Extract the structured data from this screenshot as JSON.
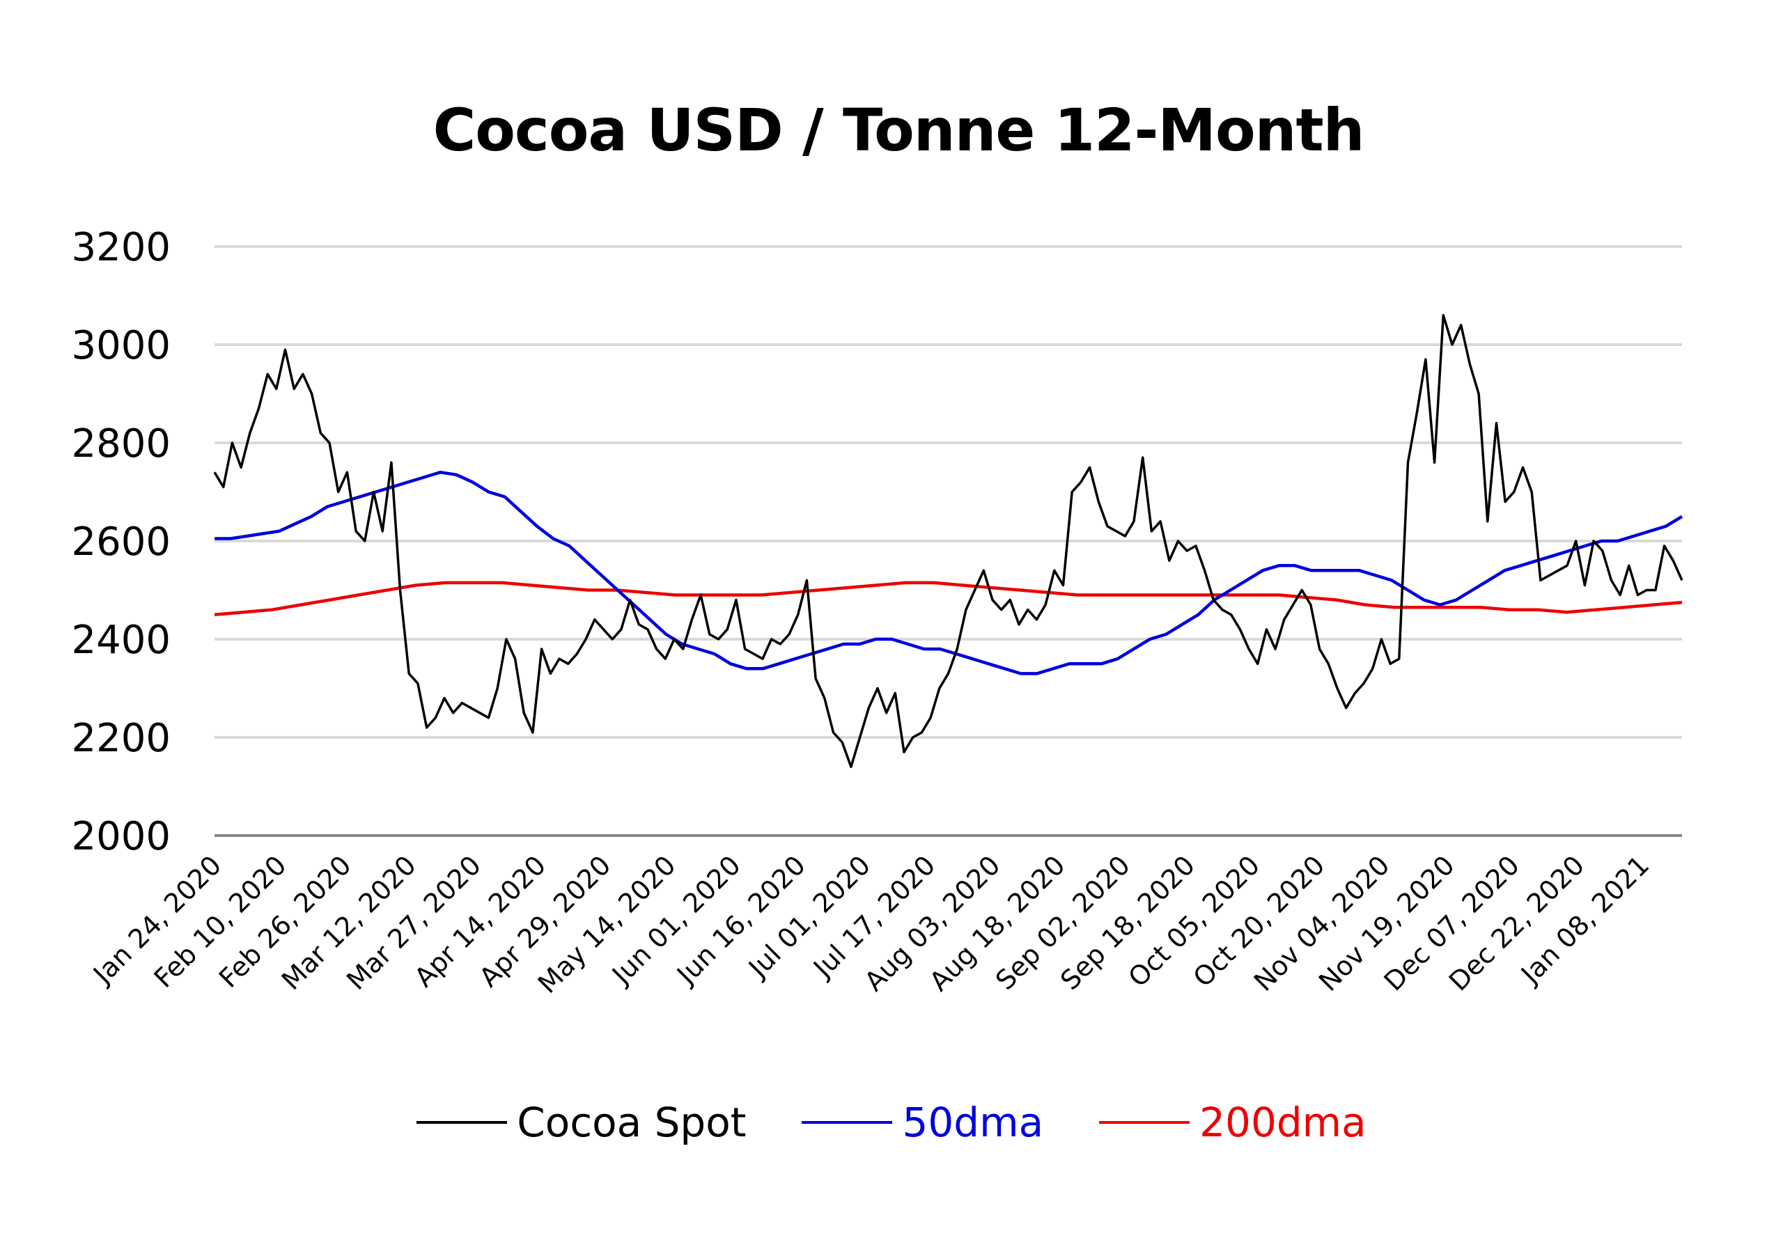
{
  "chart_data": {
    "type": "line",
    "title": "Cocoa USD / Tonne 12-Month",
    "xlabel": "",
    "ylabel": "",
    "ylim": [
      2000,
      3200
    ],
    "yticks": [
      2000,
      2200,
      2400,
      2600,
      2800,
      3000,
      3200
    ],
    "grid": true,
    "legend_position": "bottom",
    "x_tick_labels": [
      "Jan 24, 2020",
      "Feb 10, 2020",
      "Feb 26, 2020",
      "Mar 12, 2020",
      "Mar 27, 2020",
      "Apr 14, 2020",
      "Apr 29, 2020",
      "May 14, 2020",
      "Jun 01, 2020",
      "Jun 16, 2020",
      "Jul 01, 2020",
      "Jul 17, 2020",
      "Aug 03, 2020",
      "Aug 18, 2020",
      "Sep 02, 2020",
      "Sep 18, 2020",
      "Oct 05, 2020",
      "Oct 20, 2020",
      "Nov 04, 2020",
      "Nov 19, 2020",
      "Dec 07, 2020",
      "Dec 22, 2020",
      "Jan 08, 2021"
    ],
    "series": [
      {
        "name": "Cocoa Spot",
        "color": "#000000",
        "values": [
          2740,
          2710,
          2800,
          2750,
          2820,
          2870,
          2940,
          2910,
          2990,
          2910,
          2940,
          2900,
          2820,
          2800,
          2700,
          2740,
          2620,
          2600,
          2700,
          2620,
          2760,
          2500,
          2330,
          2310,
          2220,
          2240,
          2280,
          2250,
          2270,
          2260,
          2250,
          2240,
          2300,
          2400,
          2360,
          2250,
          2210,
          2380,
          2330,
          2360,
          2350,
          2370,
          2400,
          2440,
          2420,
          2400,
          2420,
          2480,
          2430,
          2420,
          2380,
          2360,
          2400,
          2380,
          2440,
          2490,
          2410,
          2400,
          2420,
          2480,
          2380,
          2370,
          2360,
          2400,
          2390,
          2410,
          2450,
          2520,
          2320,
          2280,
          2210,
          2190,
          2140,
          2200,
          2260,
          2300,
          2250,
          2290,
          2170,
          2200,
          2210,
          2240,
          2300,
          2330,
          2380,
          2460,
          2500,
          2540,
          2480,
          2460,
          2480,
          2430,
          2460,
          2440,
          2470,
          2540,
          2510,
          2700,
          2720,
          2750,
          2680,
          2630,
          2620,
          2610,
          2640,
          2770,
          2620,
          2640,
          2560,
          2600,
          2580,
          2590,
          2540,
          2480,
          2460,
          2450,
          2420,
          2380,
          2350,
          2420,
          2380,
          2440,
          2470,
          2500,
          2470,
          2380,
          2350,
          2300,
          2260,
          2290,
          2310,
          2340,
          2400,
          2350,
          2360,
          2760,
          2860,
          2970,
          2760,
          3060,
          3000,
          3040,
          2960,
          2900,
          2640,
          2840,
          2680,
          2700,
          2750,
          2700,
          2520,
          2530,
          2540,
          2550,
          2600,
          2510,
          2600,
          2580,
          2520,
          2490,
          2550,
          2490,
          2500,
          2500,
          2590,
          2560,
          2520
        ]
      },
      {
        "name": "50dma",
        "color": "#0000dd",
        "values": [
          2605,
          2605,
          2610,
          2615,
          2620,
          2635,
          2650,
          2670,
          2680,
          2690,
          2700,
          2710,
          2720,
          2730,
          2740,
          2735,
          2720,
          2700,
          2690,
          2660,
          2630,
          2605,
          2590,
          2560,
          2530,
          2500,
          2470,
          2440,
          2410,
          2390,
          2380,
          2370,
          2350,
          2340,
          2340,
          2350,
          2360,
          2370,
          2380,
          2390,
          2390,
          2400,
          2400,
          2390,
          2380,
          2380,
          2370,
          2360,
          2350,
          2340,
          2330,
          2330,
          2340,
          2350,
          2350,
          2350,
          2360,
          2380,
          2400,
          2410,
          2430,
          2450,
          2480,
          2500,
          2520,
          2540,
          2550,
          2550,
          2540,
          2540,
          2540,
          2540,
          2530,
          2520,
          2500,
          2480,
          2470,
          2480,
          2500,
          2520,
          2540,
          2550,
          2560,
          2570,
          2580,
          2590,
          2600,
          2600,
          2610,
          2620,
          2630,
          2650
        ]
      },
      {
        "name": "200dma",
        "color": "#ee0000",
        "values": [
          2450,
          2455,
          2460,
          2470,
          2480,
          2490,
          2500,
          2510,
          2515,
          2515,
          2515,
          2510,
          2505,
          2500,
          2500,
          2495,
          2490,
          2490,
          2490,
          2490,
          2495,
          2500,
          2505,
          2510,
          2515,
          2515,
          2510,
          2505,
          2500,
          2495,
          2490,
          2490,
          2490,
          2490,
          2490,
          2490,
          2490,
          2490,
          2485,
          2480,
          2470,
          2465,
          2465,
          2465,
          2465,
          2460,
          2460,
          2455,
          2460,
          2465,
          2470,
          2475
        ]
      }
    ]
  },
  "axes": {
    "y_labels": [
      "3200",
      "3000",
      "2800",
      "2600",
      "2400",
      "2200",
      "2000"
    ]
  },
  "legend": {
    "items": [
      {
        "label": "Cocoa Spot",
        "color": "#000000",
        "text_color": "#000000"
      },
      {
        "label": "50dma",
        "color": "#0000dd",
        "text_color": "#0000dd"
      },
      {
        "label": "200dma",
        "color": "#ee0000",
        "text_color": "#ee0000"
      }
    ]
  },
  "colors": {
    "gridline": "#d9d9d9",
    "axis": "#888888"
  }
}
